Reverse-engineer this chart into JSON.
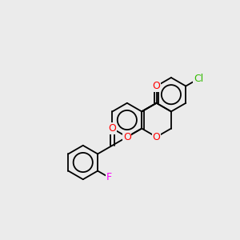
{
  "bg": "#EBEBEB",
  "bc": "#000000",
  "lw": 1.3,
  "fontsize": 8.5,
  "colors": {
    "O": "#FF0000",
    "F": "#FF00FF",
    "Cl": "#33BB00"
  },
  "figsize": [
    3.0,
    3.0
  ],
  "dpi": 100
}
